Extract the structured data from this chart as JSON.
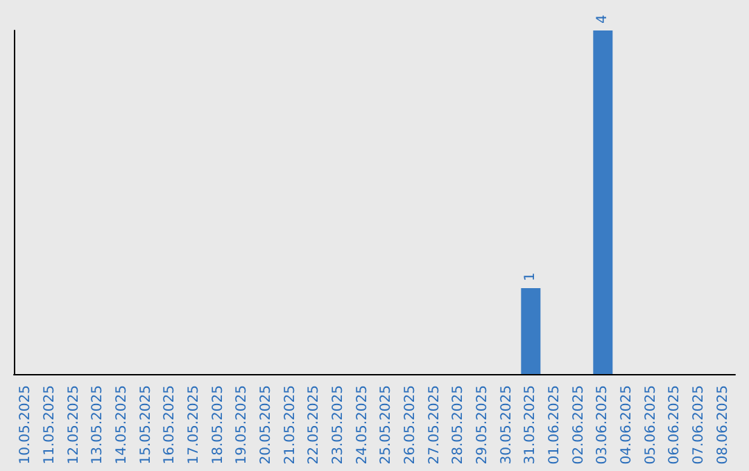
{
  "chart_data": {
    "type": "bar",
    "categories": [
      "10.05.2025",
      "11.05.2025",
      "12.05.2025",
      "13.05.2025",
      "14.05.2025",
      "15.05.2025",
      "16.05.2025",
      "17.05.2025",
      "18.05.2025",
      "19.05.2025",
      "20.05.2025",
      "21.05.2025",
      "22.05.2025",
      "23.05.2025",
      "24.05.2025",
      "25.05.2025",
      "26.05.2025",
      "27.05.2025",
      "28.05.2025",
      "29.05.2025",
      "30.05.2025",
      "31.05.2025",
      "01.06.2025",
      "02.06.2025",
      "03.06.2025",
      "04.06.2025",
      "05.06.2025",
      "06.06.2025",
      "07.06.2025",
      "08.06.2025"
    ],
    "values": [
      null,
      null,
      null,
      null,
      null,
      null,
      null,
      null,
      null,
      null,
      null,
      null,
      null,
      null,
      null,
      null,
      null,
      null,
      null,
      null,
      null,
      1,
      null,
      null,
      4,
      null,
      null,
      null,
      null,
      null
    ],
    "value_labels": [
      null,
      null,
      null,
      null,
      null,
      null,
      null,
      null,
      null,
      null,
      null,
      null,
      null,
      null,
      null,
      null,
      null,
      null,
      null,
      null,
      null,
      "1",
      null,
      null,
      "4",
      null,
      null,
      null,
      null,
      null
    ],
    "color": "#3a7cc4",
    "tick_labels": "x",
    "grid": false
  }
}
